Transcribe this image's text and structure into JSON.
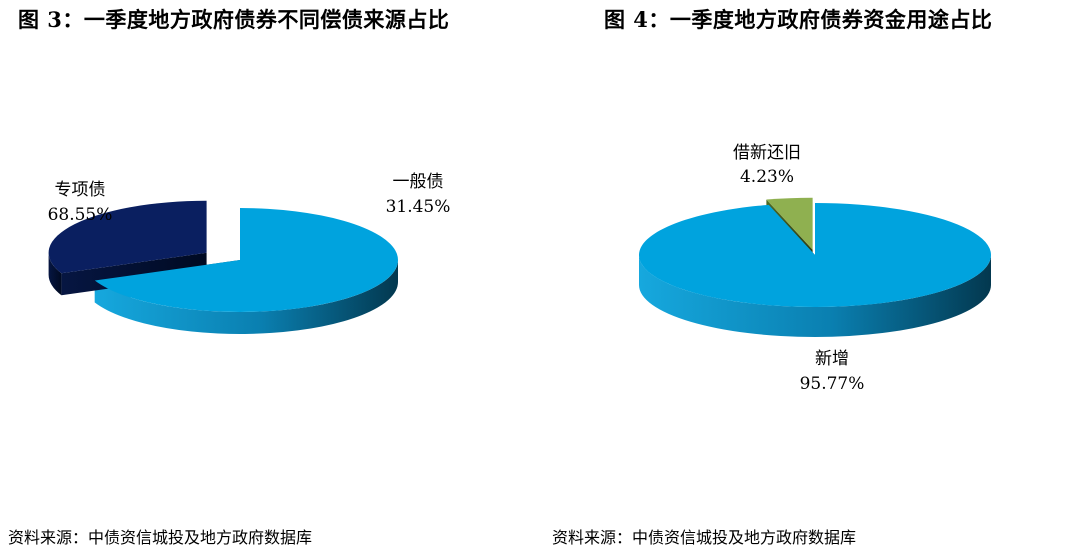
{
  "chart_data": [
    {
      "type": "pie",
      "style": "3d-exploded",
      "title": "图 3：一季度地方政府债券不同偿债来源占比",
      "categories": [
        "专项债",
        "一般债"
      ],
      "values": [
        68.55,
        31.45
      ],
      "value_labels": [
        "68.55%",
        "31.45%"
      ],
      "exploded": [
        "一般债"
      ],
      "colors": [
        "#00a3de",
        "#0a1f60"
      ],
      "source": "资料来源：中债资信城投及地方政府数据库"
    },
    {
      "type": "pie",
      "style": "3d-exploded",
      "title": "图 4：一季度地方政府债券资金用途占比",
      "categories": [
        "新增",
        "借新还旧"
      ],
      "values": [
        95.77,
        4.23
      ],
      "value_labels": [
        "95.77%",
        "4.23%"
      ],
      "exploded": [
        "借新还旧"
      ],
      "colors": [
        "#00a3de",
        "#8fb050"
      ],
      "source": "资料来源：中债资信城投及地方政府数据库"
    }
  ]
}
